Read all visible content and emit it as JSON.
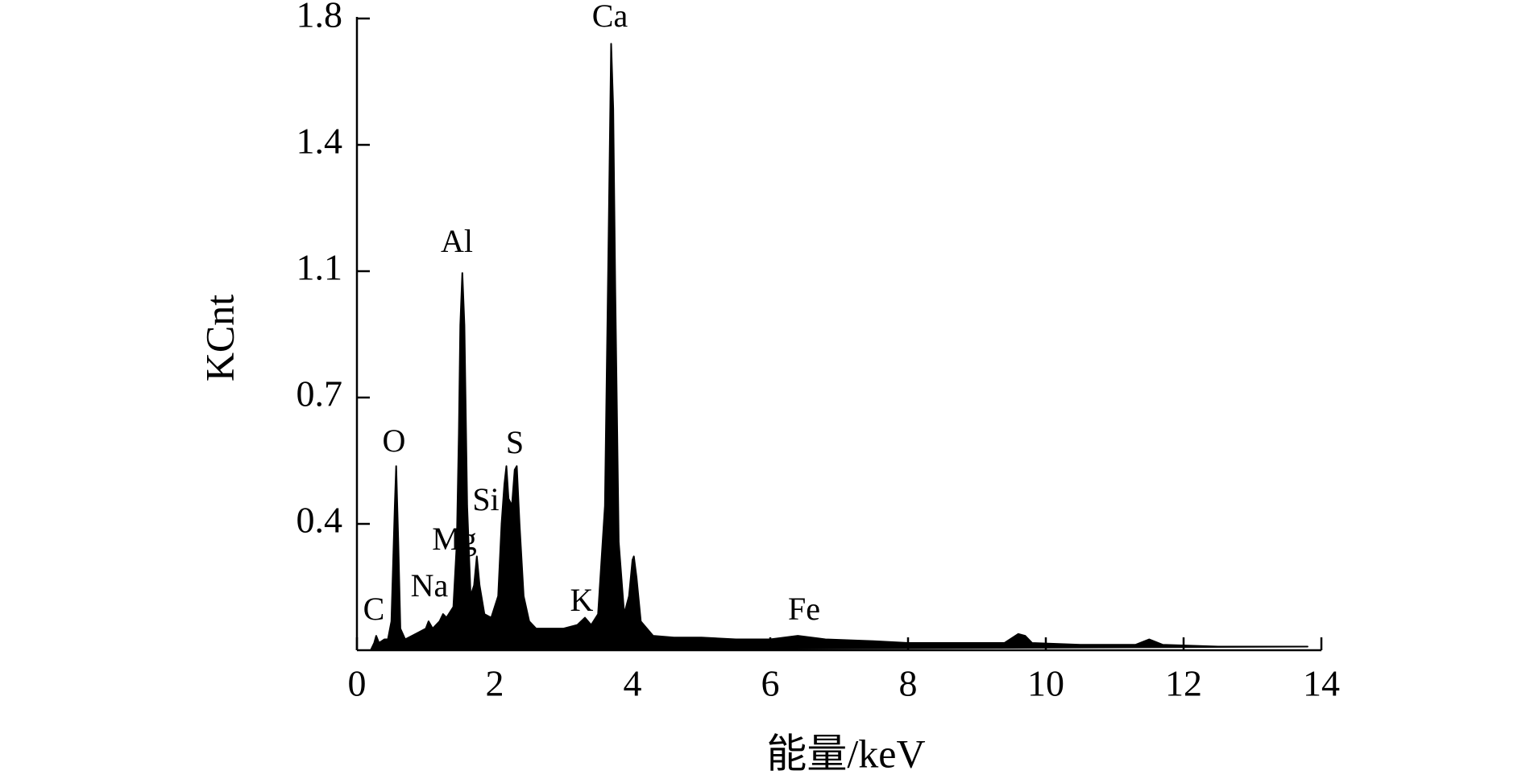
{
  "chart_data": {
    "type": "area",
    "ylabel": "KCnt",
    "xlabel": "能量/keV",
    "color": "#000000",
    "xlim": [
      0,
      14
    ],
    "xticks": [
      0,
      2,
      4,
      6,
      8,
      10,
      12,
      14
    ],
    "ylim": [
      0,
      1.75
    ],
    "yticks": [
      {
        "value": 0.35,
        "label": "0.4"
      },
      {
        "value": 0.7,
        "label": "0.7"
      },
      {
        "value": 1.05,
        "label": "1.1"
      },
      {
        "value": 1.4,
        "label": "1.4"
      },
      {
        "value": 1.75,
        "label": "1.8"
      }
    ],
    "x": [
      0.2,
      0.25,
      0.28,
      0.32,
      0.4,
      0.45,
      0.5,
      0.55,
      0.57,
      0.6,
      0.63,
      0.7,
      0.8,
      0.9,
      1.0,
      1.04,
      1.1,
      1.2,
      1.25,
      1.3,
      1.4,
      1.45,
      1.48,
      1.5,
      1.53,
      1.56,
      1.6,
      1.65,
      1.7,
      1.74,
      1.78,
      1.85,
      1.95,
      2.05,
      2.1,
      2.14,
      2.17,
      2.2,
      2.25,
      2.29,
      2.32,
      2.36,
      2.42,
      2.5,
      2.6,
      2.8,
      3.0,
      3.2,
      3.31,
      3.4,
      3.5,
      3.6,
      3.65,
      3.69,
      3.72,
      3.75,
      3.8,
      3.88,
      3.95,
      4.0,
      4.02,
      4.06,
      4.12,
      4.3,
      4.6,
      5.0,
      5.5,
      6.0,
      6.4,
      6.8,
      7.5,
      8.0,
      8.5,
      9.0,
      9.4,
      9.6,
      9.7,
      9.8,
      10.5,
      11.3,
      11.5,
      11.7,
      12.5,
      13.3,
      13.8
    ],
    "values": [
      0,
      0.02,
      0.04,
      0.02,
      0.03,
      0.03,
      0.08,
      0.4,
      0.51,
      0.3,
      0.06,
      0.03,
      0.04,
      0.05,
      0.06,
      0.08,
      0.06,
      0.08,
      0.1,
      0.09,
      0.12,
      0.3,
      0.6,
      0.9,
      1.045,
      0.9,
      0.4,
      0.15,
      0.18,
      0.26,
      0.18,
      0.1,
      0.09,
      0.15,
      0.35,
      0.46,
      0.51,
      0.42,
      0.4,
      0.5,
      0.51,
      0.35,
      0.15,
      0.08,
      0.06,
      0.06,
      0.06,
      0.07,
      0.09,
      0.07,
      0.1,
      0.4,
      1.1,
      1.68,
      1.5,
      1.0,
      0.3,
      0.1,
      0.15,
      0.25,
      0.26,
      0.2,
      0.08,
      0.04,
      0.035,
      0.035,
      0.03,
      0.03,
      0.04,
      0.03,
      0.025,
      0.02,
      0.02,
      0.02,
      0.02,
      0.045,
      0.04,
      0.02,
      0.015,
      0.015,
      0.03,
      0.015,
      0.01,
      0.01,
      0.01
    ],
    "annotations": [
      "C",
      "Na",
      "Mg",
      "Si",
      "O",
      "Al",
      "S",
      "K",
      "Ca",
      "Fe"
    ]
  }
}
